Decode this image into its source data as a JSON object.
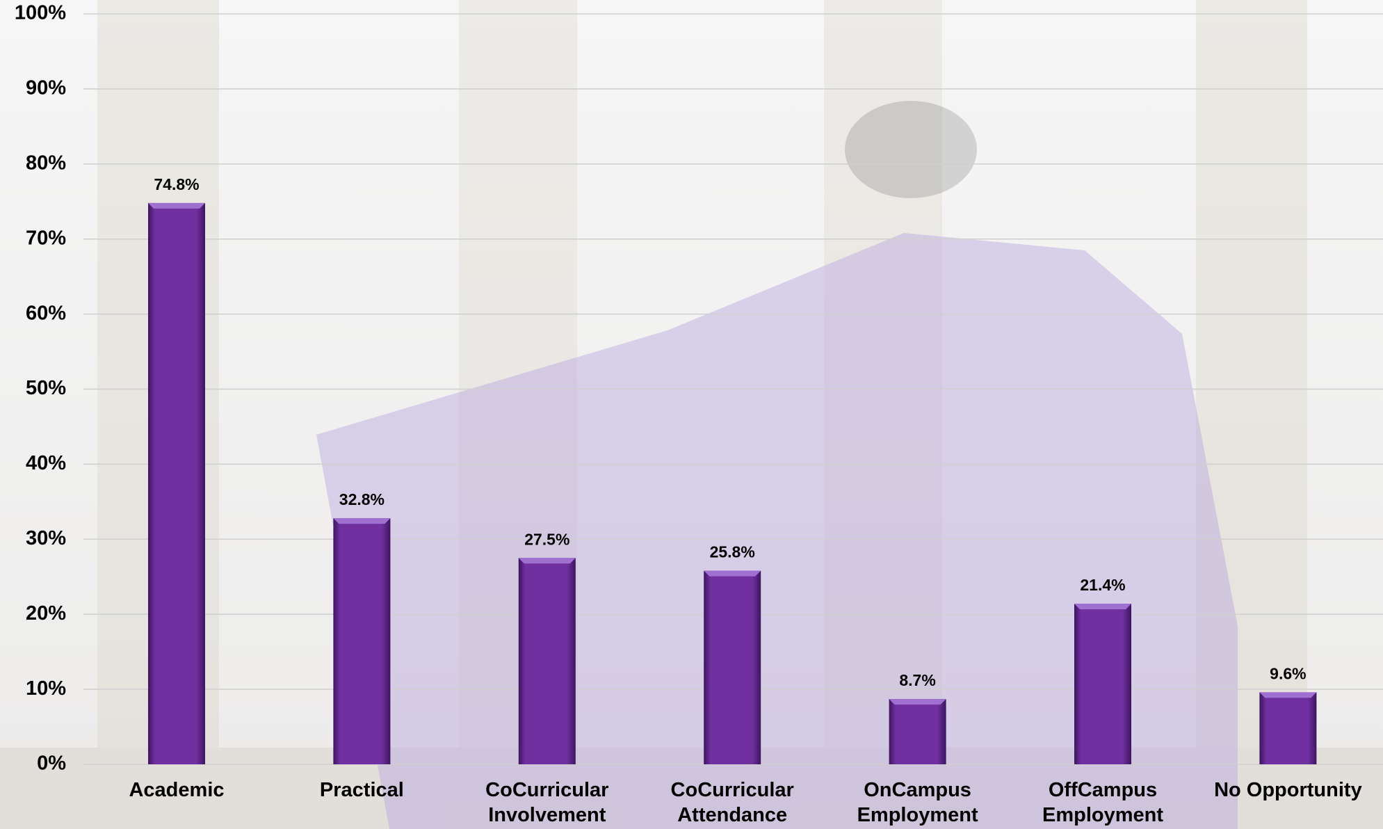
{
  "chart_data": {
    "type": "bar",
    "categories": [
      "Academic",
      "Practical",
      "CoCurricular Involvement",
      "CoCurricular Attendance",
      "OnCampus Employment",
      "OffCampus Employment",
      "No Opportunity"
    ],
    "values": [
      74.8,
      32.8,
      27.5,
      25.8,
      8.7,
      21.4,
      9.6
    ],
    "value_labels": [
      "74.8%",
      "32.8%",
      "27.5%",
      "25.8%",
      "8.7%",
      "21.4%",
      "9.6%"
    ],
    "color": "#7030a0",
    "ylim": [
      0,
      100
    ],
    "yticks": [
      {
        "value": 0,
        "label": "0%"
      },
      {
        "value": 10,
        "label": "10%"
      },
      {
        "value": 20,
        "label": "20%"
      },
      {
        "value": 30,
        "label": "30%"
      },
      {
        "value": 40,
        "label": "40%"
      },
      {
        "value": 50,
        "label": "50%"
      },
      {
        "value": 60,
        "label": "60%"
      },
      {
        "value": 70,
        "label": "70%"
      },
      {
        "value": 80,
        "label": "80%"
      },
      {
        "value": 90,
        "label": "90%"
      },
      {
        "value": 100,
        "label": "100%"
      }
    ],
    "grid": true
  }
}
